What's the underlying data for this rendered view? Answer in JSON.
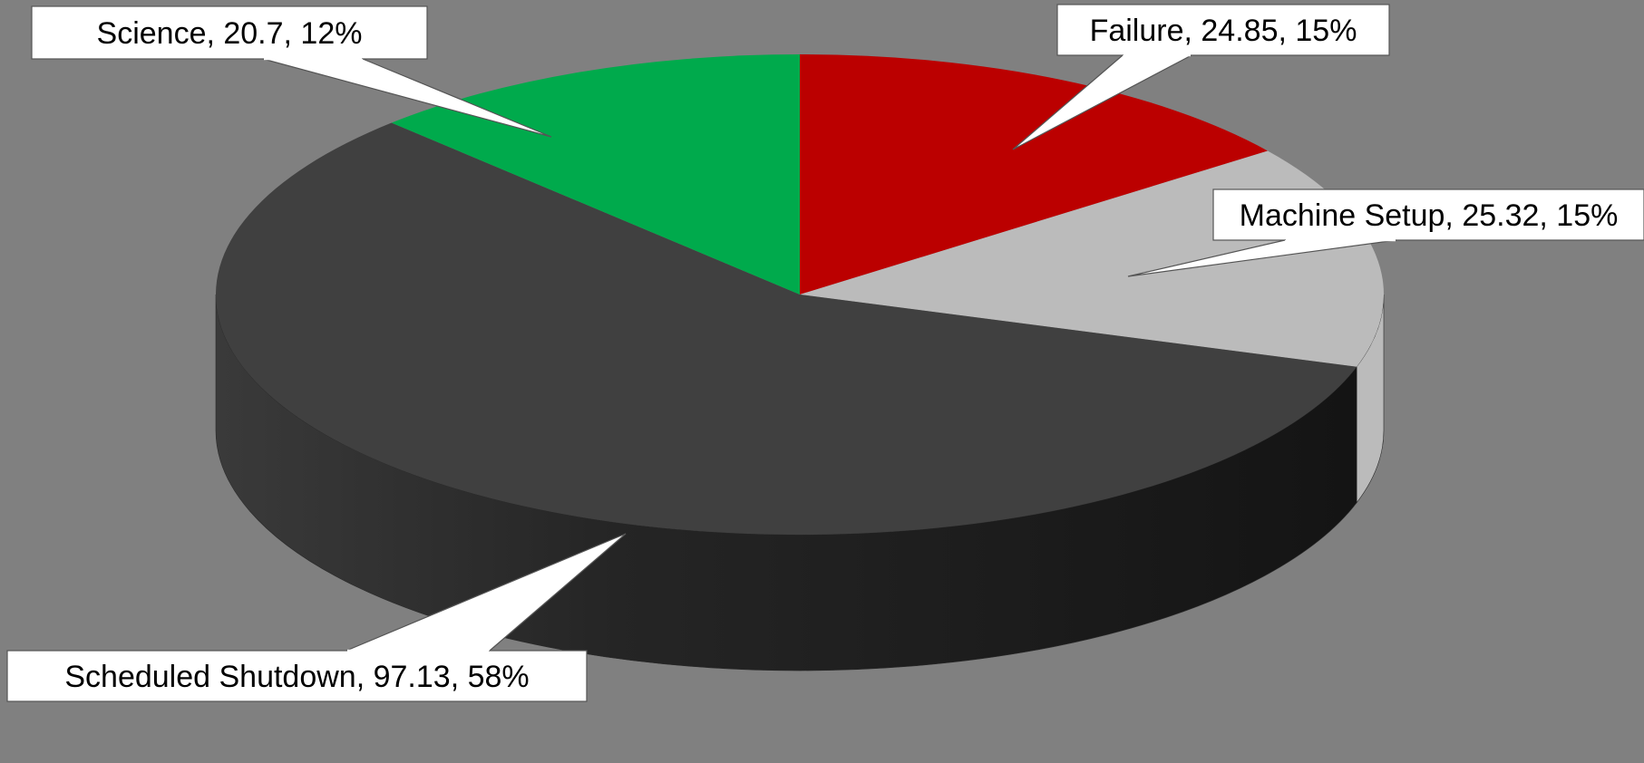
{
  "chart_data": {
    "type": "pie",
    "style": "3d-exploded-none",
    "title": "",
    "slices": [
      {
        "label": "Failure",
        "value": 24.85,
        "percent": "15%",
        "color": "#BB0000",
        "display": "Failure, 24.85, 15%"
      },
      {
        "label": "Machine Setup",
        "value": 25.32,
        "percent": "15%",
        "color": "#BBBBBB",
        "display": "Machine Setup, 25.32, 15%"
      },
      {
        "label": "Scheduled Shutdown",
        "value": 97.13,
        "percent": "58%",
        "color": "#404040",
        "display": "Scheduled Shutdown, 97.13, 58%"
      },
      {
        "label": "Science",
        "value": 20.7,
        "percent": "12%",
        "color": "#00AA4C",
        "display": "Science, 20.7, 12%"
      }
    ],
    "background": "#808080",
    "legend": "none",
    "data_labels": "callouts"
  }
}
